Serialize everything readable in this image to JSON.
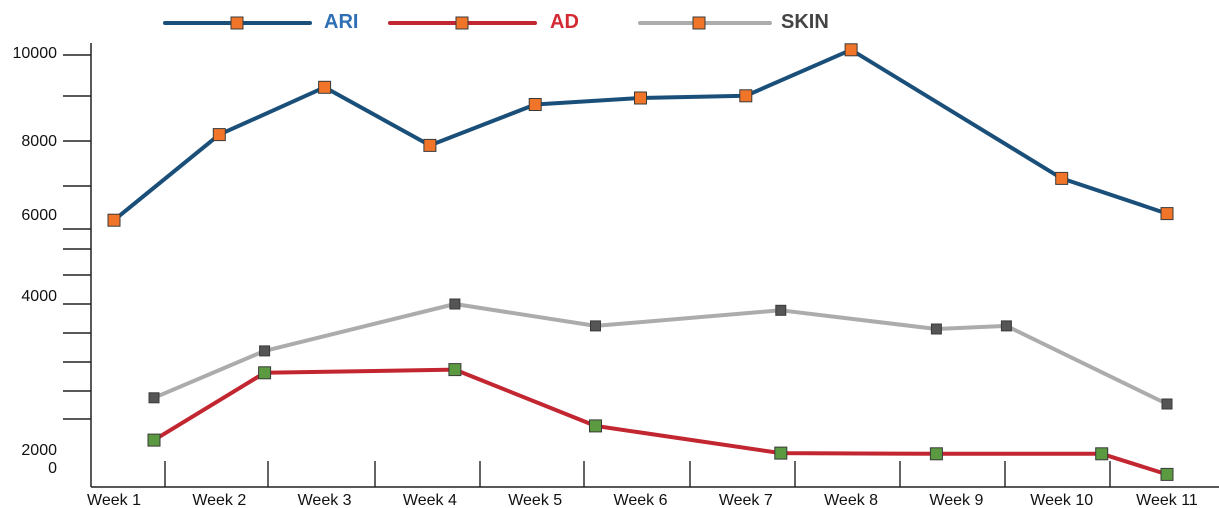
{
  "chart_data": {
    "type": "line",
    "title": "",
    "xlabel": "",
    "ylabel": "",
    "categories": [
      "Week 1",
      "Week 2",
      "Week 3",
      "Week 4",
      "Week 5",
      "Week 6",
      "Week 7",
      "Week 8",
      "Week 9",
      "Week 10",
      "Week 11"
    ],
    "y_tick_labels": [
      "10000",
      "8000",
      "6000",
      "4000",
      "2000",
      "0"
    ],
    "ylim": [
      0,
      10000
    ],
    "grid": false,
    "legend_position": "top",
    "series": [
      {
        "name": "ARI",
        "line_color": "#1a4f7a",
        "marker_color": "#f07528",
        "label_color": "#2f6fb5",
        "points": [
          {
            "x": "Week 1",
            "y": 6200
          },
          {
            "x": "Week 2",
            "y": 8150
          },
          {
            "x": "Week 3",
            "y": 9250
          },
          {
            "x": "Week 4",
            "y": 7900
          },
          {
            "x": "Week 5",
            "y": 8850
          },
          {
            "x": "Week 6",
            "y": 9000
          },
          {
            "x": "Week 7",
            "y": 9050
          },
          {
            "x": "Week 8",
            "y": 10150
          },
          {
            "x": "Week 10",
            "y": 7150
          },
          {
            "x": "Week 11",
            "y": 6350
          }
        ]
      },
      {
        "name": "AD",
        "line_color": "#c22630",
        "marker_color": "#5b9a40",
        "label_color": "#d42a34",
        "points": [
          {
            "x": "Week 1",
            "y": 1700
          },
          {
            "x": "Week 3",
            "y": 2900
          },
          {
            "x": "Week 4",
            "y": 2950
          },
          {
            "x": "Week 6",
            "y": 2050
          },
          {
            "x": "Week 7",
            "y": 1350
          },
          {
            "x": "Week 9",
            "y": 1330
          },
          {
            "x": "Week 10",
            "y": 1330
          },
          {
            "x": "Week 11",
            "y": 600
          }
        ]
      },
      {
        "name": "SKIN",
        "line_color": "#acacac",
        "marker_color": "#555555",
        "label_color": "#444444",
        "points": [
          {
            "x": "Week 1",
            "y": 2500
          },
          {
            "x": "Week 3",
            "y": 3250
          },
          {
            "x": "Week 4",
            "y": 4000
          },
          {
            "x": "Week 6",
            "y": 3650
          },
          {
            "x": "Week 7",
            "y": 3900
          },
          {
            "x": "Week 9",
            "y": 3600
          },
          {
            "x": "Week 9",
            "y": 3650
          },
          {
            "x": "Week 11",
            "y": 2400
          }
        ]
      }
    ]
  }
}
